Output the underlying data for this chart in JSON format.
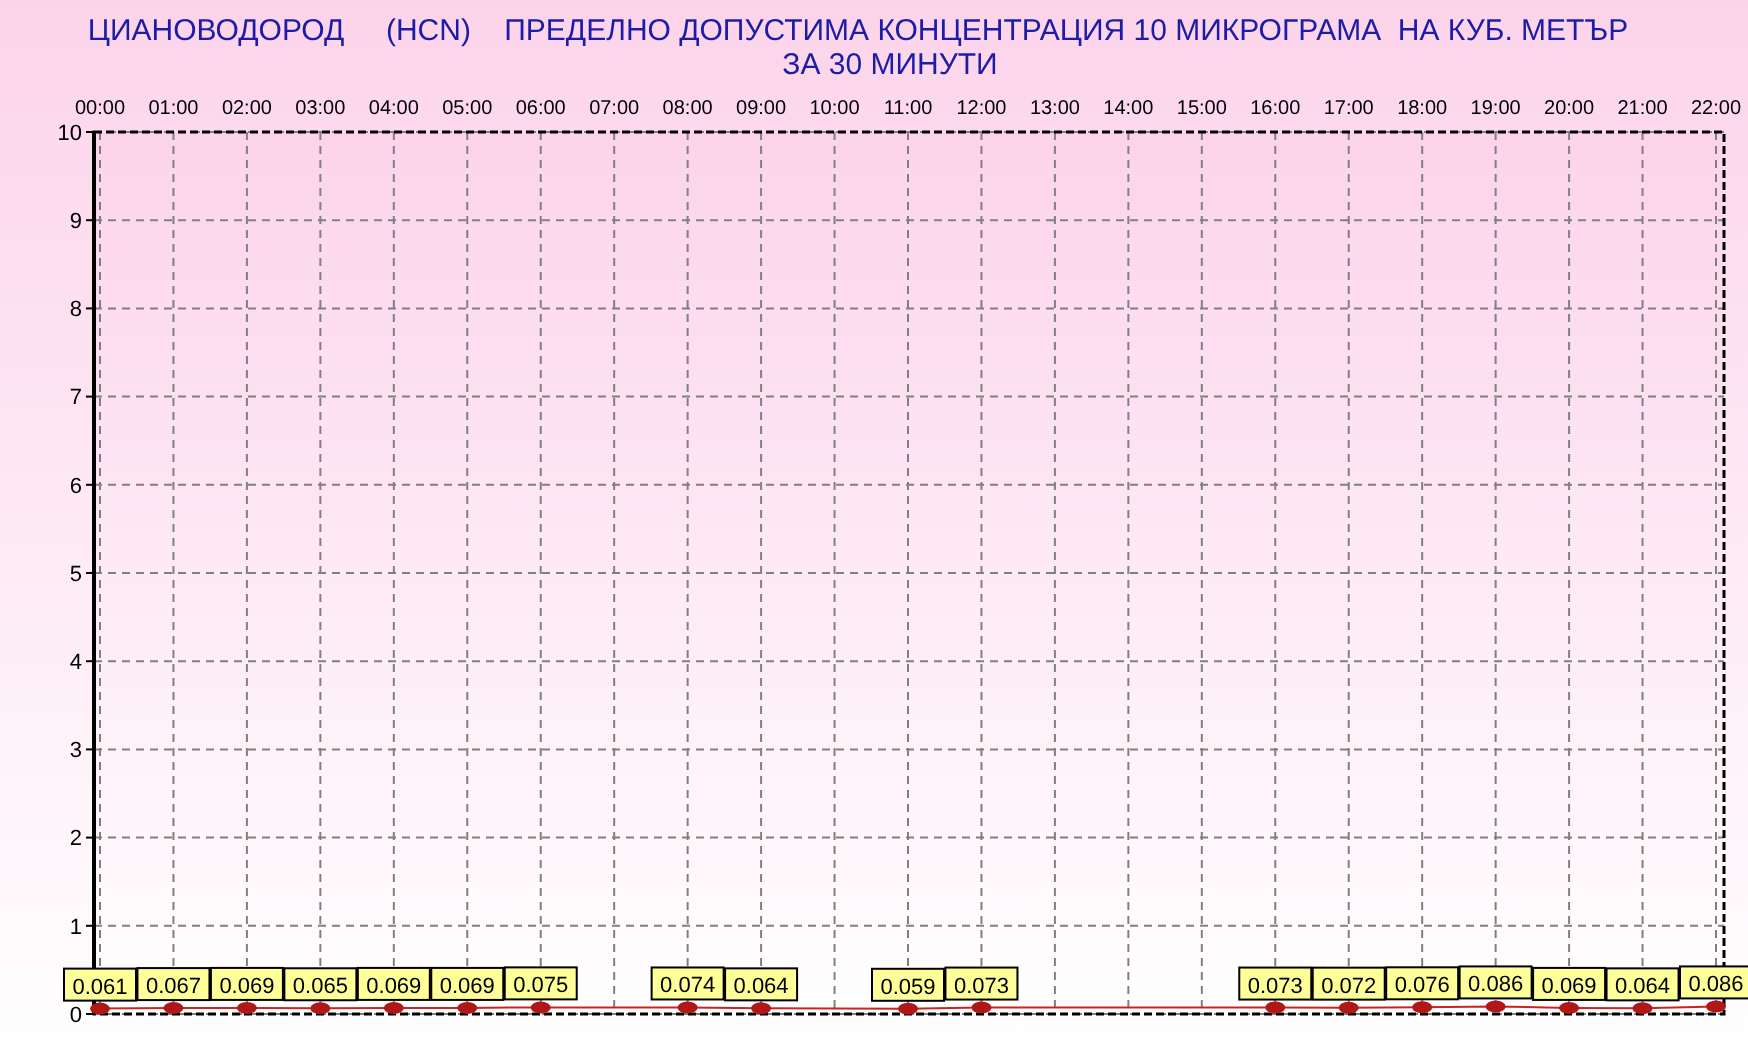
{
  "chart_data": {
    "type": "line",
    "title": "ЦИАНОВОДОРОД     (HCN)    ПРЕДЕЛНО ДОПУСТИМА КОНЦЕНТРАЦИЯ 10 МИКРОГРАМА  НА КУБ. МЕТЪР",
    "subtitle": "ЗА 30 МИНУТИ",
    "categories": [
      "00:00",
      "01:00",
      "02:00",
      "03:00",
      "04:00",
      "05:00",
      "06:00",
      "07:00",
      "08:00",
      "09:00",
      "10:00",
      "11:00",
      "12:00",
      "13:00",
      "14:00",
      "15:00",
      "16:00",
      "17:00",
      "18:00",
      "19:00",
      "20:00",
      "21:00",
      "22:00"
    ],
    "series": [
      {
        "color": "#cc2222",
        "values": [
          0.061,
          0.067,
          0.069,
          0.065,
          0.069,
          0.069,
          0.075,
          null,
          0.074,
          0.064,
          null,
          0.059,
          0.073,
          null,
          null,
          null,
          0.073,
          0.072,
          0.076,
          0.086,
          0.069,
          0.064,
          0.086
        ]
      }
    ],
    "ylim": [
      0,
      10
    ],
    "yticks": [
      0,
      1,
      2,
      3,
      4,
      5,
      6,
      7,
      8,
      9,
      10
    ],
    "grid": true,
    "marker": "circle",
    "line_style": "solid",
    "data_labels": true
  }
}
